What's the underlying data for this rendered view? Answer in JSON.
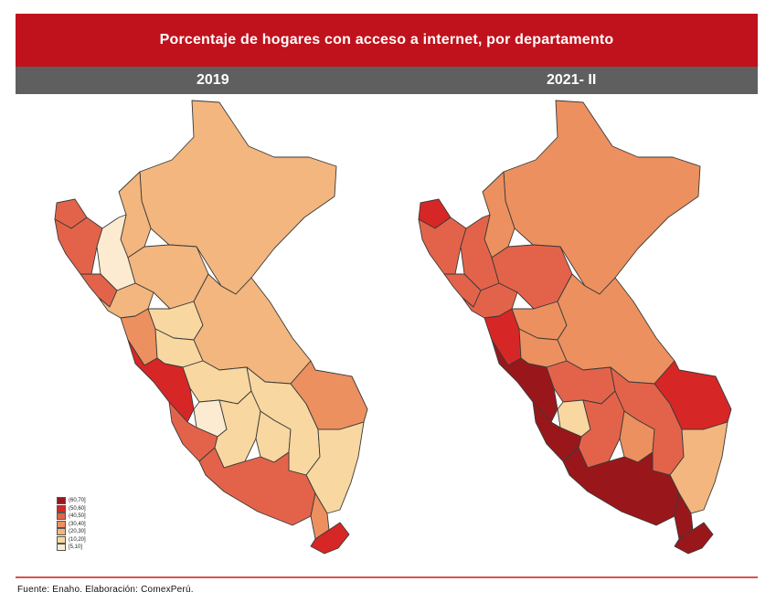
{
  "title": "Porcentaje de hogares con acceso a internet, por departamento",
  "years": [
    "2019",
    "2021- II"
  ],
  "legend": {
    "items": [
      {
        "label": "(60,70]",
        "color": "#99171b"
      },
      {
        "label": "(50,60]",
        "color": "#d72626"
      },
      {
        "label": "(40,50]",
        "color": "#e3634a"
      },
      {
        "label": "(30,40]",
        "color": "#ec905f"
      },
      {
        "label": "(20,30]",
        "color": "#f2b67e"
      },
      {
        "label": "(10,20]",
        "color": "#f8d7a0"
      },
      {
        "label": "[5,10]",
        "color": "#fcebd0"
      }
    ]
  },
  "source": "Fuente: Enaho. Elaboración: ComexPerú.",
  "regions": {
    "map2019": {
      "loreto": "#f2b67e",
      "amazonas": "#f2b67e",
      "tumbes": "#e3634a",
      "piura": "#e3634a",
      "cajamarca": "#fcebd0",
      "lambayeque": "#e3634a",
      "sanmartin": "#f2b67e",
      "lalibertad": "#f2b67e",
      "ancash": "#ec905f",
      "huanuco": "#f8d7a0",
      "pasco": "#f8d7a0",
      "ucayali": "#f2b67e",
      "lima": "#d72626",
      "junin": "#f8d7a0",
      "huancavelica": "#fcebd0",
      "ica": "#e3634a",
      "ayacucho": "#f8d7a0",
      "apurimac": "#f8d7a0",
      "cusco": "#f8d7a0",
      "madrededios": "#ec905f",
      "puno": "#f8d7a0",
      "arequipa": "#e3634a",
      "moquegua": "#ec905f",
      "tacna": "#d72626"
    },
    "map2021": {
      "loreto": "#ec905f",
      "amazonas": "#ec905f",
      "tumbes": "#d72626",
      "piura": "#e3634a",
      "cajamarca": "#e3634a",
      "lambayeque": "#e3634a",
      "sanmartin": "#e3634a",
      "lalibertad": "#e3634a",
      "ancash": "#d72626",
      "huanuco": "#ec905f",
      "pasco": "#ec905f",
      "ucayali": "#ec905f",
      "lima": "#99171b",
      "junin": "#e3634a",
      "huancavelica": "#f8d7a0",
      "ica": "#99171b",
      "ayacucho": "#e3634a",
      "apurimac": "#ec905f",
      "cusco": "#e3634a",
      "madrededios": "#d72626",
      "puno": "#f2b67e",
      "arequipa": "#99171b",
      "moquegua": "#99171b",
      "tacna": "#99171b"
    }
  }
}
